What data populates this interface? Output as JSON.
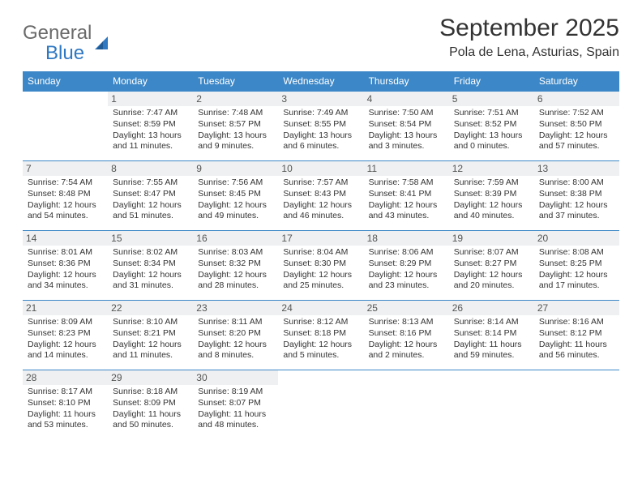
{
  "branding": {
    "word1": "General",
    "word2": "Blue",
    "word1_color": "#6a6a6a",
    "word2_color": "#2f78c2",
    "sail_color": "#2f78c2"
  },
  "header": {
    "title": "September 2025",
    "location": "Pola de Lena, Asturias, Spain"
  },
  "calendar": {
    "type": "table",
    "header_bg": "#3c87c7",
    "header_text_color": "#ffffff",
    "row_border_color": "#3c87c7",
    "daynum_bg": "#eef0f1",
    "text_color": "#333333",
    "background_color": "#ffffff",
    "font_size_header": 12,
    "font_size_daynum": 12,
    "font_size_cell": 10.5,
    "columns": [
      "Sunday",
      "Monday",
      "Tuesday",
      "Wednesday",
      "Thursday",
      "Friday",
      "Saturday"
    ],
    "weeks": [
      [
        null,
        {
          "n": "1",
          "sunrise": "Sunrise: 7:47 AM",
          "sunset": "Sunset: 8:59 PM",
          "daylight": "Daylight: 13 hours and 11 minutes."
        },
        {
          "n": "2",
          "sunrise": "Sunrise: 7:48 AM",
          "sunset": "Sunset: 8:57 PM",
          "daylight": "Daylight: 13 hours and 9 minutes."
        },
        {
          "n": "3",
          "sunrise": "Sunrise: 7:49 AM",
          "sunset": "Sunset: 8:55 PM",
          "daylight": "Daylight: 13 hours and 6 minutes."
        },
        {
          "n": "4",
          "sunrise": "Sunrise: 7:50 AM",
          "sunset": "Sunset: 8:54 PM",
          "daylight": "Daylight: 13 hours and 3 minutes."
        },
        {
          "n": "5",
          "sunrise": "Sunrise: 7:51 AM",
          "sunset": "Sunset: 8:52 PM",
          "daylight": "Daylight: 13 hours and 0 minutes."
        },
        {
          "n": "6",
          "sunrise": "Sunrise: 7:52 AM",
          "sunset": "Sunset: 8:50 PM",
          "daylight": "Daylight: 12 hours and 57 minutes."
        }
      ],
      [
        {
          "n": "7",
          "sunrise": "Sunrise: 7:54 AM",
          "sunset": "Sunset: 8:48 PM",
          "daylight": "Daylight: 12 hours and 54 minutes."
        },
        {
          "n": "8",
          "sunrise": "Sunrise: 7:55 AM",
          "sunset": "Sunset: 8:47 PM",
          "daylight": "Daylight: 12 hours and 51 minutes."
        },
        {
          "n": "9",
          "sunrise": "Sunrise: 7:56 AM",
          "sunset": "Sunset: 8:45 PM",
          "daylight": "Daylight: 12 hours and 49 minutes."
        },
        {
          "n": "10",
          "sunrise": "Sunrise: 7:57 AM",
          "sunset": "Sunset: 8:43 PM",
          "daylight": "Daylight: 12 hours and 46 minutes."
        },
        {
          "n": "11",
          "sunrise": "Sunrise: 7:58 AM",
          "sunset": "Sunset: 8:41 PM",
          "daylight": "Daylight: 12 hours and 43 minutes."
        },
        {
          "n": "12",
          "sunrise": "Sunrise: 7:59 AM",
          "sunset": "Sunset: 8:39 PM",
          "daylight": "Daylight: 12 hours and 40 minutes."
        },
        {
          "n": "13",
          "sunrise": "Sunrise: 8:00 AM",
          "sunset": "Sunset: 8:38 PM",
          "daylight": "Daylight: 12 hours and 37 minutes."
        }
      ],
      [
        {
          "n": "14",
          "sunrise": "Sunrise: 8:01 AM",
          "sunset": "Sunset: 8:36 PM",
          "daylight": "Daylight: 12 hours and 34 minutes."
        },
        {
          "n": "15",
          "sunrise": "Sunrise: 8:02 AM",
          "sunset": "Sunset: 8:34 PM",
          "daylight": "Daylight: 12 hours and 31 minutes."
        },
        {
          "n": "16",
          "sunrise": "Sunrise: 8:03 AM",
          "sunset": "Sunset: 8:32 PM",
          "daylight": "Daylight: 12 hours and 28 minutes."
        },
        {
          "n": "17",
          "sunrise": "Sunrise: 8:04 AM",
          "sunset": "Sunset: 8:30 PM",
          "daylight": "Daylight: 12 hours and 25 minutes."
        },
        {
          "n": "18",
          "sunrise": "Sunrise: 8:06 AM",
          "sunset": "Sunset: 8:29 PM",
          "daylight": "Daylight: 12 hours and 23 minutes."
        },
        {
          "n": "19",
          "sunrise": "Sunrise: 8:07 AM",
          "sunset": "Sunset: 8:27 PM",
          "daylight": "Daylight: 12 hours and 20 minutes."
        },
        {
          "n": "20",
          "sunrise": "Sunrise: 8:08 AM",
          "sunset": "Sunset: 8:25 PM",
          "daylight": "Daylight: 12 hours and 17 minutes."
        }
      ],
      [
        {
          "n": "21",
          "sunrise": "Sunrise: 8:09 AM",
          "sunset": "Sunset: 8:23 PM",
          "daylight": "Daylight: 12 hours and 14 minutes."
        },
        {
          "n": "22",
          "sunrise": "Sunrise: 8:10 AM",
          "sunset": "Sunset: 8:21 PM",
          "daylight": "Daylight: 12 hours and 11 minutes."
        },
        {
          "n": "23",
          "sunrise": "Sunrise: 8:11 AM",
          "sunset": "Sunset: 8:20 PM",
          "daylight": "Daylight: 12 hours and 8 minutes."
        },
        {
          "n": "24",
          "sunrise": "Sunrise: 8:12 AM",
          "sunset": "Sunset: 8:18 PM",
          "daylight": "Daylight: 12 hours and 5 minutes."
        },
        {
          "n": "25",
          "sunrise": "Sunrise: 8:13 AM",
          "sunset": "Sunset: 8:16 PM",
          "daylight": "Daylight: 12 hours and 2 minutes."
        },
        {
          "n": "26",
          "sunrise": "Sunrise: 8:14 AM",
          "sunset": "Sunset: 8:14 PM",
          "daylight": "Daylight: 11 hours and 59 minutes."
        },
        {
          "n": "27",
          "sunrise": "Sunrise: 8:16 AM",
          "sunset": "Sunset: 8:12 PM",
          "daylight": "Daylight: 11 hours and 56 minutes."
        }
      ],
      [
        {
          "n": "28",
          "sunrise": "Sunrise: 8:17 AM",
          "sunset": "Sunset: 8:10 PM",
          "daylight": "Daylight: 11 hours and 53 minutes."
        },
        {
          "n": "29",
          "sunrise": "Sunrise: 8:18 AM",
          "sunset": "Sunset: 8:09 PM",
          "daylight": "Daylight: 11 hours and 50 minutes."
        },
        {
          "n": "30",
          "sunrise": "Sunrise: 8:19 AM",
          "sunset": "Sunset: 8:07 PM",
          "daylight": "Daylight: 11 hours and 48 minutes."
        },
        null,
        null,
        null,
        null
      ]
    ]
  }
}
